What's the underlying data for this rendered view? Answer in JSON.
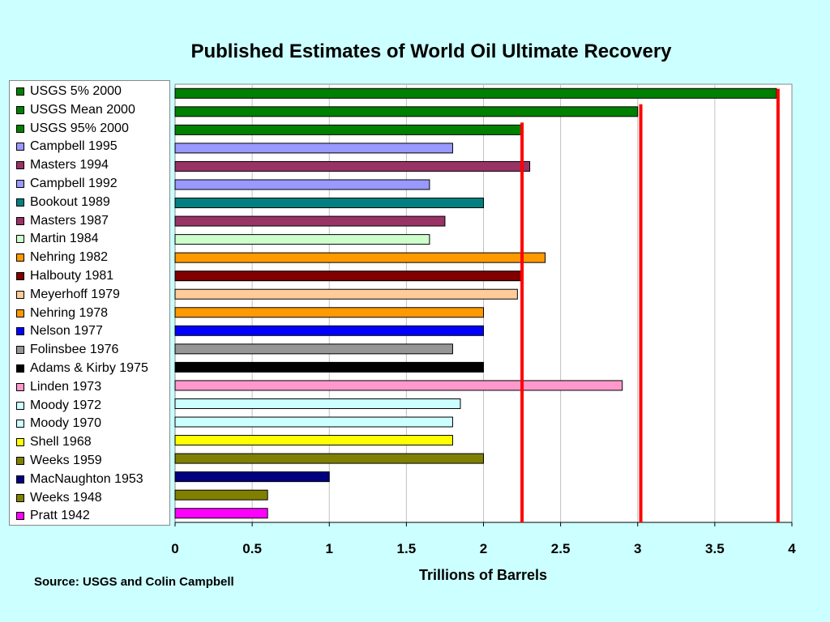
{
  "chart_data": {
    "type": "bar",
    "orientation": "horizontal",
    "title": "Published Estimates of World Oil Ultimate Recovery",
    "xlabel": "Trillions of Barrels",
    "xlim": [
      0,
      4
    ],
    "xticks": [
      "0",
      "0.5",
      "1",
      "1.5",
      "2",
      "2.5",
      "3",
      "3.5",
      "4"
    ],
    "grid": "vertical",
    "legend_placement": "left",
    "categories": [
      "USGS 5% 2000",
      "USGS Mean 2000",
      "USGS 95% 2000",
      "Campbell 1995",
      "Masters 1994",
      "Campbell 1992",
      "Bookout 1989",
      "Masters 1987",
      "Martin 1984",
      "Nehring 1982",
      "Halbouty 1981",
      "Meyerhoff 1979",
      "Nehring 1978",
      "Nelson 1977",
      "Folinsbee 1976",
      "Adams & Kirby 1975",
      "Linden 1973",
      "Moody 1972",
      "Moody 1970",
      "Shell 1968",
      "Weeks 1959",
      "MacNaughton 1953",
      "Weeks 1948",
      "Pratt 1942"
    ],
    "values": [
      3.9,
      3.0,
      2.25,
      1.8,
      2.3,
      1.65,
      2.0,
      1.75,
      1.65,
      2.4,
      2.25,
      2.22,
      2.0,
      2.0,
      1.8,
      2.0,
      2.9,
      1.85,
      1.8,
      1.8,
      2.0,
      1.0,
      0.6,
      0.6
    ],
    "colors": [
      "#008000",
      "#008000",
      "#008000",
      "#9999ff",
      "#993366",
      "#9999ff",
      "#008080",
      "#993366",
      "#ccffcc",
      "#ff9900",
      "#800000",
      "#ffcc99",
      "#ff9900",
      "#0000ff",
      "#969696",
      "#000000",
      "#ff99cc",
      "#ccffff",
      "#ccffff",
      "#ffff00",
      "#808000",
      "#000080",
      "#808000",
      "#ff00ff"
    ],
    "reference_lines": {
      "values": [
        2.25,
        3.02,
        3.91
      ],
      "color": "#ff0000"
    }
  },
  "source": "Source:  USGS and Colin Campbell"
}
